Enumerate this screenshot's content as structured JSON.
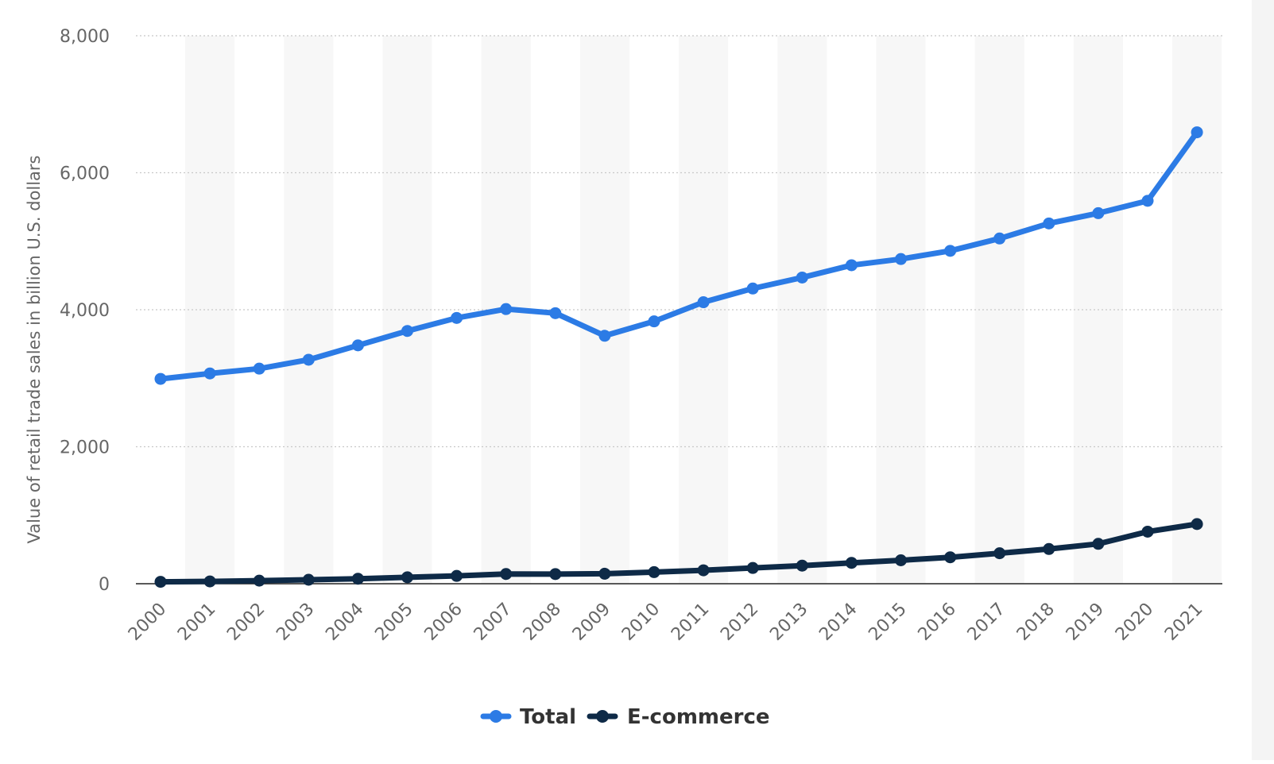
{
  "chart_data": {
    "type": "line",
    "title": "",
    "xlabel": "",
    "ylabel": "Value of retail trade sales in billion U.S. dollars",
    "categories": [
      "2000",
      "2001",
      "2002",
      "2003",
      "2004",
      "2005",
      "2006",
      "2007",
      "2008",
      "2009",
      "2010",
      "2011",
      "2012",
      "2013",
      "2014",
      "2015",
      "2016",
      "2017",
      "2018",
      "2019",
      "2020",
      "2021"
    ],
    "ylim": [
      0,
      8000
    ],
    "yticks": [
      0,
      2000,
      4000,
      6000,
      8000
    ],
    "ytick_labels": [
      "0",
      "2,000",
      "4,000",
      "6,000",
      "8,000"
    ],
    "grid": true,
    "legend_position": "bottom-center",
    "series": [
      {
        "name": "Total",
        "color": "#2c7be5",
        "values": [
          2990,
          3070,
          3140,
          3270,
          3480,
          3690,
          3880,
          4010,
          3950,
          3620,
          3830,
          4110,
          4310,
          4470,
          4650,
          4740,
          4860,
          5040,
          5260,
          5410,
          5590,
          6590
        ]
      },
      {
        "name": "E-commerce",
        "color": "#0e2a47",
        "values": [
          28,
          34,
          45,
          58,
          73,
          94,
          114,
          142,
          141,
          146,
          169,
          196,
          230,
          264,
          305,
          342,
          386,
          445,
          507,
          582,
          760,
          871
        ]
      }
    ]
  }
}
